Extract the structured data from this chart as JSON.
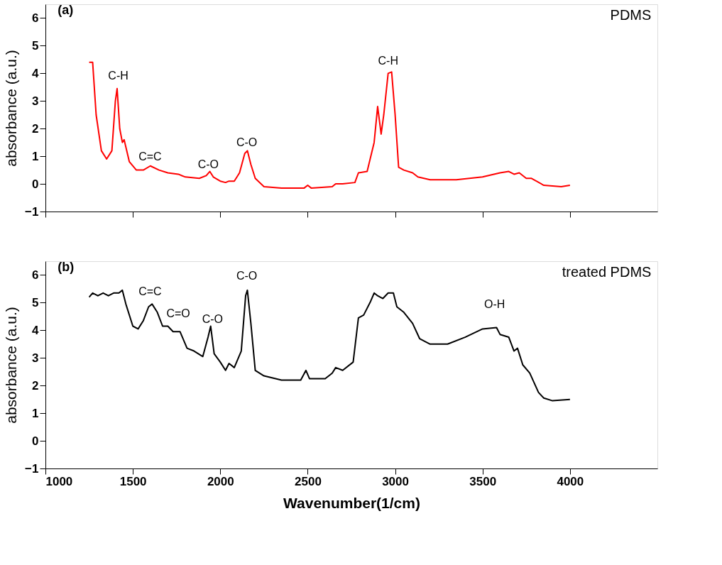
{
  "chart_data": [
    {
      "type": "line",
      "ylabel": "absorbance (a.u.)",
      "xlim": [
        1000,
        4500
      ],
      "xticks": [
        1000,
        1500,
        2000,
        2500,
        3000,
        3500,
        4000
      ],
      "ylim": [
        -1,
        6.5
      ],
      "yticks": [
        -1,
        0,
        1,
        2,
        3,
        4,
        5,
        6
      ],
      "tick_labels": "y",
      "grid": false,
      "marker": "none",
      "line_style": "solid",
      "annotations": [
        "(a)",
        "PDMS",
        "C-H",
        "C=C",
        "C-O",
        "C-O",
        "C-H"
      ],
      "series": [
        {
          "color": "#ff0000",
          "x": [
            1250,
            1270,
            1290,
            1320,
            1350,
            1380,
            1400,
            1410,
            1425,
            1440,
            1450,
            1480,
            1520,
            1560,
            1600,
            1650,
            1700,
            1760,
            1800,
            1880,
            1920,
            1940,
            1960,
            2000,
            2030,
            2050,
            2080,
            2110,
            2140,
            2155,
            2175,
            2200,
            2250,
            2350,
            2480,
            2500,
            2520,
            2640,
            2660,
            2700,
            2770,
            2790,
            2840,
            2880,
            2900,
            2920,
            2935,
            2960,
            2980,
            3000,
            3020,
            3050,
            3100,
            3130,
            3200,
            3350,
            3500,
            3600,
            3650,
            3680,
            3710,
            3750,
            3780,
            3850,
            3950,
            4000
          ],
          "values": [
            4.4,
            4.4,
            2.5,
            1.2,
            0.9,
            1.2,
            3.0,
            3.45,
            2.0,
            1.5,
            1.6,
            0.8,
            0.5,
            0.5,
            0.65,
            0.5,
            0.4,
            0.35,
            0.25,
            0.2,
            0.3,
            0.45,
            0.25,
            0.1,
            0.05,
            0.1,
            0.1,
            0.4,
            1.1,
            1.2,
            0.7,
            0.2,
            -0.1,
            -0.15,
            -0.15,
            -0.05,
            -0.15,
            -0.1,
            0,
            0,
            0.05,
            0.4,
            0.45,
            1.5,
            2.8,
            1.8,
            2.5,
            4.0,
            4.05,
            2.5,
            0.6,
            0.5,
            0.4,
            0.25,
            0.15,
            0.15,
            0.25,
            0.4,
            0.45,
            0.35,
            0.4,
            0.2,
            0.2,
            -0.05,
            -0.1,
            -0.05
          ]
        }
      ]
    },
    {
      "type": "line",
      "xlabel": "Wavenumber(1/cm)",
      "ylabel": "absorbance (a.u.)",
      "xlim": [
        1000,
        4500
      ],
      "xticks": [
        1000,
        1500,
        2000,
        2500,
        3000,
        3500,
        4000
      ],
      "ylim": [
        -1,
        6.5
      ],
      "yticks": [
        -1,
        0,
        1,
        2,
        3,
        4,
        5,
        6
      ],
      "grid": false,
      "marker": "none",
      "line_style": "solid",
      "annotations": [
        "(b)",
        "treated PDMS",
        "C=C",
        "C=O",
        "C-O",
        "C-O",
        "O-H"
      ],
      "series": [
        {
          "color": "#000000",
          "x": [
            1250,
            1270,
            1300,
            1330,
            1360,
            1390,
            1420,
            1440,
            1460,
            1500,
            1530,
            1560,
            1590,
            1610,
            1640,
            1670,
            1700,
            1730,
            1770,
            1810,
            1850,
            1900,
            1930,
            1945,
            1965,
            2000,
            2030,
            2050,
            2080,
            2120,
            2145,
            2155,
            2175,
            2200,
            2250,
            2350,
            2460,
            2490,
            2510,
            2600,
            2640,
            2660,
            2700,
            2760,
            2790,
            2820,
            2860,
            2880,
            2900,
            2930,
            2960,
            2990,
            3010,
            3050,
            3100,
            3140,
            3200,
            3300,
            3400,
            3500,
            3580,
            3600,
            3650,
            3680,
            3700,
            3730,
            3770,
            3820,
            3850,
            3900,
            4000
          ],
          "values": [
            5.2,
            5.35,
            5.25,
            5.35,
            5.25,
            5.35,
            5.35,
            5.45,
            4.95,
            4.15,
            4.05,
            4.35,
            4.85,
            4.95,
            4.65,
            4.15,
            4.15,
            3.95,
            3.95,
            3.35,
            3.25,
            3.05,
            3.75,
            4.15,
            3.15,
            2.85,
            2.55,
            2.8,
            2.65,
            3.25,
            5.25,
            5.45,
            4.25,
            2.55,
            2.35,
            2.2,
            2.2,
            2.55,
            2.25,
            2.25,
            2.45,
            2.65,
            2.55,
            2.85,
            4.45,
            4.55,
            5.05,
            5.35,
            5.25,
            5.15,
            5.35,
            5.35,
            4.85,
            4.65,
            4.25,
            3.7,
            3.5,
            3.5,
            3.75,
            4.05,
            4.1,
            3.85,
            3.75,
            3.25,
            3.35,
            2.75,
            2.45,
            1.75,
            1.55,
            1.45,
            1.5
          ]
        }
      ]
    }
  ]
}
